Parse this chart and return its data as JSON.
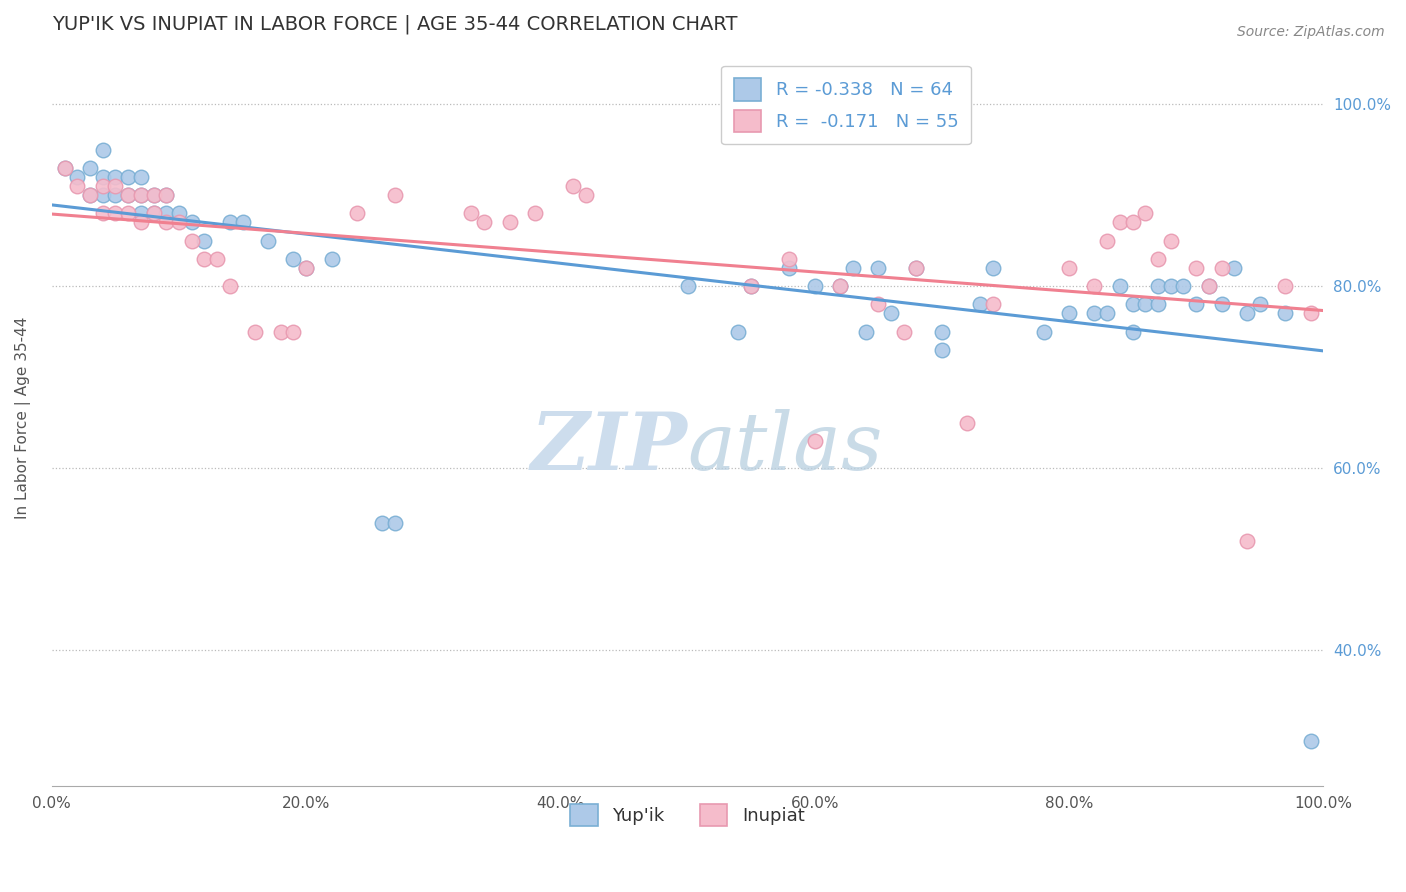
{
  "title": "YUP'IK VS INUPIAT IN LABOR FORCE | AGE 35-44 CORRELATION CHART",
  "source_text": "Source: ZipAtlas.com",
  "ylabel": "In Labor Force | Age 35-44",
  "xlim": [
    0.0,
    1.0
  ],
  "ylim": [
    0.25,
    1.06
  ],
  "xticks": [
    0.0,
    0.2,
    0.4,
    0.6,
    0.8,
    1.0
  ],
  "yticks": [
    0.4,
    0.6,
    0.8,
    1.0
  ],
  "ytick_labels": [
    "40.0%",
    "60.0%",
    "80.0%",
    "100.0%"
  ],
  "xtick_labels": [
    "0.0%",
    "20.0%",
    "40.0%",
    "60.0%",
    "80.0%",
    "100.0%"
  ],
  "legend_blue_label": "R = -0.338   N = 64",
  "legend_pink_label": "R =  -0.171   N = 55",
  "blue_color": "#adc9e8",
  "pink_color": "#f5bccb",
  "blue_edge": "#7aafd4",
  "pink_edge": "#e899b0",
  "trendline_blue": "#5b9bd5",
  "trendline_pink": "#f08090",
  "watermark_color": "#cddded",
  "legend_bottom_blue": "Yup'ik",
  "legend_bottom_pink": "Inupiat",
  "blue_x": [
    0.01,
    0.02,
    0.03,
    0.03,
    0.04,
    0.04,
    0.04,
    0.05,
    0.05,
    0.06,
    0.06,
    0.07,
    0.07,
    0.07,
    0.08,
    0.08,
    0.09,
    0.09,
    0.1,
    0.11,
    0.12,
    0.14,
    0.15,
    0.17,
    0.19,
    0.2,
    0.22,
    0.26,
    0.27,
    0.5,
    0.54,
    0.55,
    0.58,
    0.6,
    0.62,
    0.63,
    0.64,
    0.65,
    0.66,
    0.68,
    0.7,
    0.7,
    0.73,
    0.74,
    0.78,
    0.8,
    0.82,
    0.83,
    0.84,
    0.85,
    0.85,
    0.86,
    0.87,
    0.87,
    0.88,
    0.89,
    0.9,
    0.91,
    0.92,
    0.93,
    0.94,
    0.95,
    0.97,
    0.99
  ],
  "blue_y": [
    0.93,
    0.92,
    0.9,
    0.93,
    0.9,
    0.92,
    0.95,
    0.9,
    0.92,
    0.9,
    0.92,
    0.88,
    0.9,
    0.92,
    0.88,
    0.9,
    0.88,
    0.9,
    0.88,
    0.87,
    0.85,
    0.87,
    0.87,
    0.85,
    0.83,
    0.82,
    0.83,
    0.54,
    0.54,
    0.8,
    0.75,
    0.8,
    0.82,
    0.8,
    0.8,
    0.82,
    0.75,
    0.82,
    0.77,
    0.82,
    0.73,
    0.75,
    0.78,
    0.82,
    0.75,
    0.77,
    0.77,
    0.77,
    0.8,
    0.78,
    0.75,
    0.78,
    0.78,
    0.8,
    0.8,
    0.8,
    0.78,
    0.8,
    0.78,
    0.82,
    0.77,
    0.78,
    0.77,
    0.3
  ],
  "pink_x": [
    0.01,
    0.02,
    0.03,
    0.04,
    0.04,
    0.05,
    0.05,
    0.06,
    0.06,
    0.07,
    0.07,
    0.08,
    0.08,
    0.09,
    0.09,
    0.1,
    0.11,
    0.12,
    0.13,
    0.14,
    0.16,
    0.18,
    0.19,
    0.2,
    0.24,
    0.27,
    0.33,
    0.34,
    0.36,
    0.38,
    0.41,
    0.42,
    0.55,
    0.58,
    0.6,
    0.62,
    0.65,
    0.67,
    0.68,
    0.72,
    0.74,
    0.8,
    0.82,
    0.83,
    0.84,
    0.85,
    0.86,
    0.87,
    0.88,
    0.9,
    0.91,
    0.92,
    0.94,
    0.97,
    0.99
  ],
  "pink_y": [
    0.93,
    0.91,
    0.9,
    0.88,
    0.91,
    0.88,
    0.91,
    0.88,
    0.9,
    0.87,
    0.9,
    0.88,
    0.9,
    0.87,
    0.9,
    0.87,
    0.85,
    0.83,
    0.83,
    0.8,
    0.75,
    0.75,
    0.75,
    0.82,
    0.88,
    0.9,
    0.88,
    0.87,
    0.87,
    0.88,
    0.91,
    0.9,
    0.8,
    0.83,
    0.63,
    0.8,
    0.78,
    0.75,
    0.82,
    0.65,
    0.78,
    0.82,
    0.8,
    0.85,
    0.87,
    0.87,
    0.88,
    0.83,
    0.85,
    0.82,
    0.8,
    0.82,
    0.52,
    0.8,
    0.77
  ]
}
